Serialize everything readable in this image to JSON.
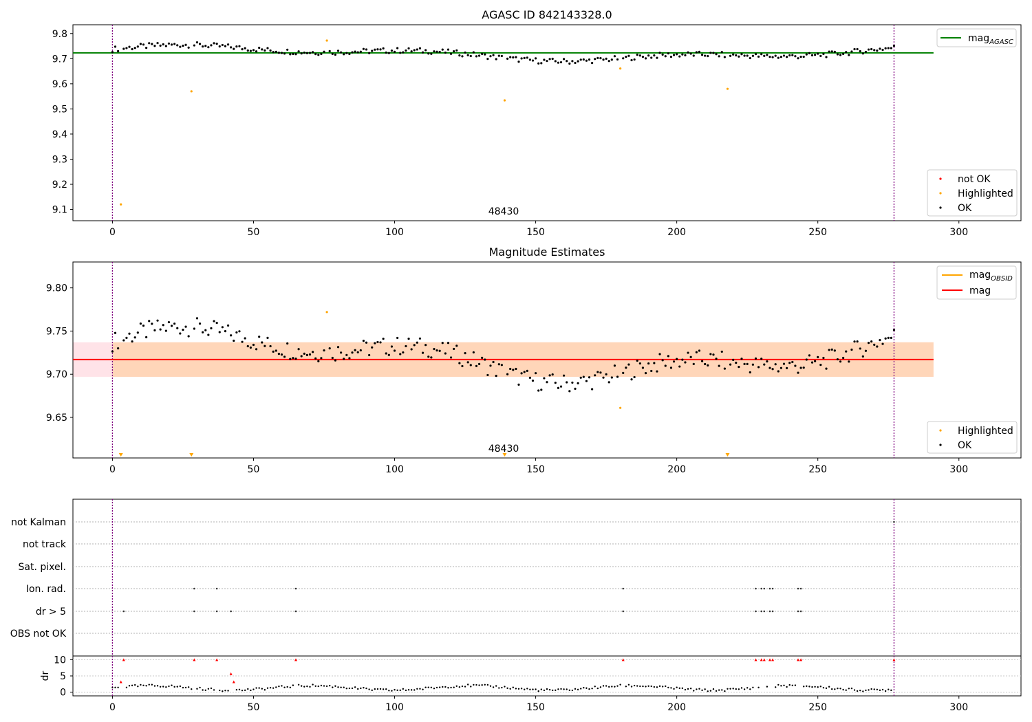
{
  "chart_data": [
    {
      "type": "scatter",
      "title": "AGASC ID 842143328.0",
      "annotation": "48430",
      "xlim": [
        -14,
        322
      ],
      "ylim": [
        9.055,
        9.835
      ],
      "xticks": [
        0,
        50,
        100,
        150,
        200,
        250,
        300
      ],
      "yticks": [
        9.1,
        9.2,
        9.3,
        9.4,
        9.5,
        9.6,
        9.7,
        9.8
      ],
      "vlines": [
        0,
        277
      ],
      "line": {
        "name": "mag_AGASC",
        "y": 9.723,
        "x_range": [
          -14,
          291
        ],
        "color": "#008000"
      },
      "legend_line": {
        "text": "mag",
        "subscript": "AGASC"
      },
      "legend_points": [
        "not OK",
        "Highlighted",
        "OK"
      ],
      "legend_colors": [
        "#ff0000",
        "#ffa500",
        "#000000"
      ],
      "ok_color": "#000000",
      "highlight_color": "#ffa500",
      "highlighted": [
        [
          3,
          9.12
        ],
        [
          28,
          9.57
        ],
        [
          76,
          9.772
        ],
        [
          139,
          9.534
        ],
        [
          180,
          9.661
        ],
        [
          218,
          9.58
        ]
      ]
    },
    {
      "type": "scatter",
      "title": "Magnitude Estimates",
      "annotation": "48430",
      "xlim": [
        -14,
        322
      ],
      "ylim": [
        9.603,
        9.83
      ],
      "xticks": [
        0,
        50,
        100,
        150,
        200,
        250,
        300
      ],
      "yticks": [
        9.65,
        9.7,
        9.75,
        9.8
      ],
      "ytick_labels": [
        "9.65",
        "9.70",
        "9.75",
        "9.80"
      ],
      "vlines": [
        0,
        277
      ],
      "mag_line": {
        "y": 9.717,
        "x_range": [
          -14,
          291
        ],
        "color": "#ff0000"
      },
      "band_obsid": {
        "y_range": [
          9.697,
          9.737
        ],
        "x_range": [
          0,
          291
        ],
        "color": "#ffa500"
      },
      "band_mag": {
        "y_range": [
          9.697,
          9.737
        ],
        "x_range": [
          -14,
          291
        ],
        "color": "#ffc0cb"
      },
      "legend_lines": [
        {
          "text": "mag",
          "subscript": "OBSID",
          "color": "#ffa500"
        },
        {
          "text": "mag",
          "subscript": "",
          "color": "#ff0000"
        }
      ],
      "legend_points": [
        "Highlighted",
        "OK"
      ],
      "legend_colors": [
        "#ffa500",
        "#000000"
      ],
      "highlighted": [
        [
          76,
          9.772
        ],
        [
          180,
          9.661
        ]
      ],
      "offscale_markers": [
        3,
        28,
        139,
        218
      ]
    },
    {
      "type": "scatter",
      "title": "",
      "xlim": [
        -14,
        322
      ],
      "xticks": [
        0,
        50,
        100,
        150,
        200,
        250,
        300
      ],
      "vlines": [
        0,
        277
      ],
      "flag_rows": [
        "not Kalman",
        "not track",
        "Sat. pixel.",
        "Ion. rad.",
        "dr > 5",
        "OBS not OK"
      ],
      "flags": {
        "ion_rad": [
          29,
          37,
          65,
          181,
          228,
          230,
          231,
          233,
          234,
          243,
          244
        ],
        "dr_gt_5": [
          4,
          29,
          37,
          42,
          65,
          181,
          228,
          230,
          231,
          233,
          234,
          243,
          244
        ],
        "not_kalman": [
          277
        ]
      },
      "dr_axis": {
        "ylabel": "dr",
        "ylim": [
          -0.5,
          10.5
        ],
        "yticks": [
          0,
          5,
          10
        ]
      },
      "dr_red": [
        [
          4,
          10
        ],
        [
          29,
          10
        ],
        [
          37,
          10
        ],
        [
          65,
          10
        ],
        [
          181,
          10
        ],
        [
          228,
          10
        ],
        [
          230,
          10
        ],
        [
          231,
          10
        ],
        [
          233,
          10
        ],
        [
          234,
          10
        ],
        [
          243,
          10
        ],
        [
          244,
          10
        ],
        [
          277,
          10
        ],
        [
          3,
          3.2
        ],
        [
          42,
          5.7
        ],
        [
          43,
          3.2
        ]
      ]
    }
  ]
}
